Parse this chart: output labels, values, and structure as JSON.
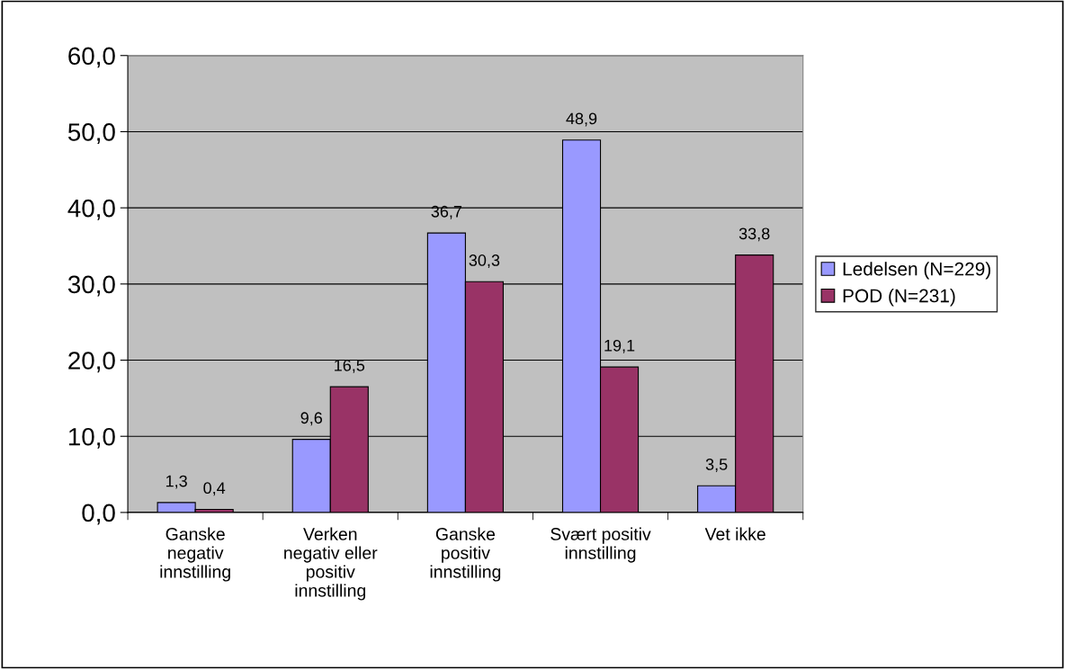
{
  "chart_data": {
    "type": "bar",
    "categories": [
      "Ganske negativ innstilling",
      "Verken negativ eller positiv innstilling",
      "Ganske positiv innstilling",
      "Svært positiv innstilling",
      "Vet ikke"
    ],
    "series": [
      {
        "name": "Ledelsen (N=229)",
        "color": "#9999ff",
        "values": [
          1.3,
          9.6,
          36.7,
          48.9,
          3.5
        ],
        "value_labels": [
          "1,3",
          "9,6",
          "36,7",
          "48,9",
          "3,5"
        ]
      },
      {
        "name": "POD (N=231)",
        "color": "#993366",
        "values": [
          0.4,
          16.5,
          30.3,
          19.1,
          33.8
        ],
        "value_labels": [
          "0,4",
          "16,5",
          "30,3",
          "19,1",
          "33,8"
        ]
      }
    ],
    "ylim": [
      0,
      60
    ],
    "yticks": [
      {
        "value": 0,
        "label": "0,0"
      },
      {
        "value": 10,
        "label": "10,0"
      },
      {
        "value": 20,
        "label": "20,0"
      },
      {
        "value": 30,
        "label": "30,0"
      },
      {
        "value": 40,
        "label": "40,0"
      },
      {
        "value": 50,
        "label": "50,0"
      },
      {
        "value": 60,
        "label": "60,0"
      }
    ],
    "grid": "y",
    "legend": "right"
  }
}
